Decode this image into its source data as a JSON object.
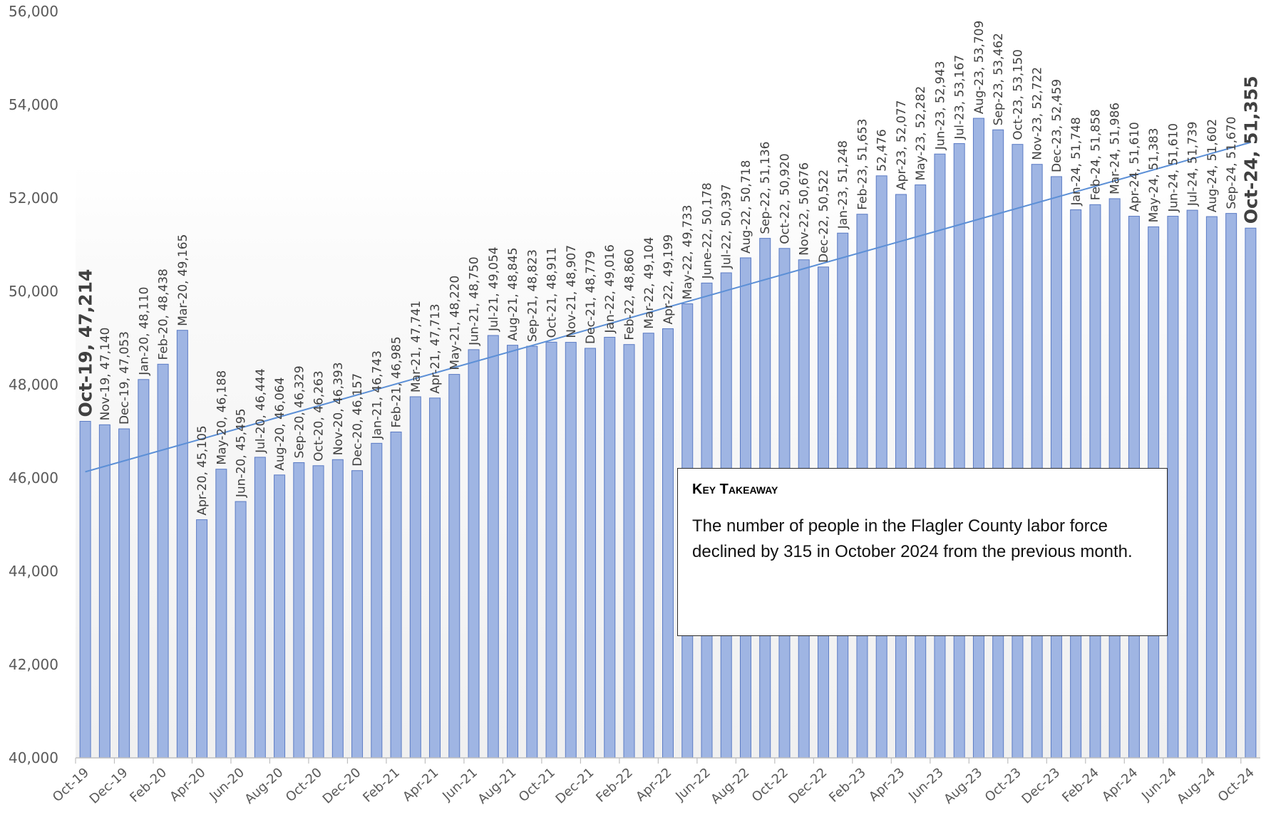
{
  "chart_data": {
    "type": "bar",
    "title": "",
    "xlabel": "",
    "ylabel": "",
    "ylim": [
      40000,
      56000
    ],
    "yticks": [
      "40,000",
      "42,000",
      "44,000",
      "46,000",
      "48,000",
      "50,000",
      "52,000",
      "54,000",
      "56,000"
    ],
    "trendline": true,
    "grid": false,
    "categories": [
      "Oct-19",
      "Nov-19",
      "Dec-19",
      "Jan-20",
      "Feb-20",
      "Mar-20",
      "Apr-20",
      "May-20",
      "Jun-20",
      "Jul-20",
      "Aug-20",
      "Sep-20",
      "Oct-20",
      "Nov-20",
      "Dec-20",
      "Jan-21",
      "Feb-21",
      "Mar-21",
      "Apr-21",
      "May-21",
      "Jun-21",
      "Jul-21",
      "Aug-21",
      "Sep-21",
      "Oct-21",
      "Nov-21",
      "Dec-21",
      "Jan-22",
      "Feb-22",
      "Mar-22",
      "Apr-22",
      "May-22",
      "Jun-22",
      "Jul-22",
      "Aug-22",
      "Sep-22",
      "Oct-22",
      "Nov-22",
      "Dec-22",
      "Jan-23",
      "Feb-23",
      "Mar-23",
      "Apr-23",
      "May-23",
      "Jun-23",
      "Jul-23",
      "Aug-23",
      "Sep-23",
      "Oct-23",
      "Nov-23",
      "Dec-23",
      "Jan-24",
      "Feb-24",
      "Mar-24",
      "Apr-24",
      "May-24",
      "Jun-24",
      "Jul-24",
      "Aug-24",
      "Sep-24",
      "Oct-24"
    ],
    "values": [
      47214,
      47140,
      47053,
      48110,
      48438,
      49165,
      45105,
      46188,
      45495,
      46444,
      46064,
      46329,
      46263,
      46393,
      46157,
      46743,
      46985,
      47741,
      47713,
      48220,
      48750,
      49054,
      48845,
      48823,
      48911,
      48907,
      48779,
      49016,
      48860,
      49104,
      49199,
      49733,
      50178,
      50397,
      50718,
      51136,
      50920,
      50676,
      50522,
      51248,
      51653,
      52476,
      52077,
      52282,
      52943,
      53167,
      53709,
      53462,
      53150,
      52722,
      52459,
      51748,
      51858,
      51986,
      51610,
      51383,
      51610,
      51739,
      51602,
      51670,
      51355
    ],
    "data_labels": [
      "Oct-19, 47,214",
      "Nov-19, 47,140",
      "Dec-19, 47,053",
      "Jan-20, 48,110",
      "Feb-20, 48,438",
      "Mar-20, 49,165",
      "Apr-20, 45,105",
      "May-20, 46,188",
      "Jun-20, 45,495",
      "Jul-20, 46,444",
      "Aug-20, 46,064",
      "Sep-20, 46,329",
      "Oct-20, 46,263",
      "Nov-20, 46,393",
      "Dec-20, 46,157",
      "Jan-21, 46,743",
      "Feb-21, 46,985",
      "Mar-21, 47,741",
      "Apr-21, 47,713",
      "May-21, 48,220",
      "Jun-21, 48,750",
      "Jul-21, 49,054",
      "Aug-21, 48,845",
      "Sep-21, 48,823",
      "Oct-21, 48,911",
      "Nov-21, 48,907",
      "Dec-21, 48,779",
      "Jan-22, 49,016",
      "Feb-22, 48,860",
      "Mar-22, 49,104",
      "Apr-22, 49,199",
      "May-22, 49,733",
      "June-22, 50,178",
      "Jul-22, 50,397",
      "Aug-22, 50,718",
      "Sep-22, 51,136",
      "Oct-22, 50,920",
      "Nov-22, 50,676",
      "Dec-22, 50,522",
      "Jan-23, 51,248",
      "Feb-23, 51,653",
      "52,476",
      "Apr-23, 52,077",
      "May-23, 52,282",
      "Jun-23, 52,943",
      "Jul-23, 53,167",
      "Aug-23, 53,709",
      "Sep-23, 53,462",
      "Oct-23, 53,150",
      "Nov-23, 52,722",
      "Dec-23, 52,459",
      "Jan-24, 51,748",
      "Feb-24, 51,858",
      "Mar-24, 51,986",
      "Apr-24, 51,610",
      "May-24, 51,383",
      "Jun-24, 51,610",
      "Jul-24, 51,739",
      "Aug-24, 51,602",
      "Sep-24, 51,670",
      "Oct-24, 51,355"
    ],
    "highlighted_labels": [
      0,
      60
    ],
    "x_tick_labels": [
      "Oct-19",
      "Dec-19",
      "Feb-20",
      "Apr-20",
      "Jun-20",
      "Aug-20",
      "Oct-20",
      "Dec-20",
      "Feb-21",
      "Apr-21",
      "Jun-21",
      "Aug-21",
      "Oct-21",
      "Dec-21",
      "Feb-22",
      "Apr-22",
      "Jun-22",
      "Aug-22",
      "Oct-22",
      "Dec-22",
      "Feb-23",
      "Apr-23",
      "Jun-23",
      "Aug-23",
      "Oct-23",
      "Dec-23",
      "Feb-24",
      "Apr-24",
      "Jun-24",
      "Aug-24",
      "Oct-24"
    ],
    "colors": {
      "bar_fill": "#9fb5e3",
      "bar_stroke": "#5b7bc4",
      "trend": "#5b8fd6",
      "axis": "#bfbfbf"
    }
  },
  "takeaway": {
    "title": "Key Takeaway",
    "text": "The number of people in the Flagler County labor force declined by 315 in October 2024 from the previous month."
  }
}
